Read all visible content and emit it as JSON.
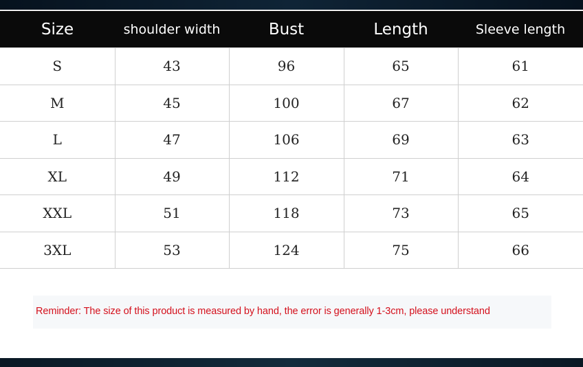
{
  "table": {
    "headers": [
      "Size",
      "shoulder width",
      "Bust",
      "Length",
      "Sleeve length"
    ],
    "rows": [
      [
        "S",
        "43",
        "96",
        "65",
        "61"
      ],
      [
        "M",
        "45",
        "100",
        "67",
        "62"
      ],
      [
        "L",
        "47",
        "106",
        "69",
        "63"
      ],
      [
        "XL",
        "49",
        "112",
        "71",
        "64"
      ],
      [
        "XXL",
        "51",
        "118",
        "73",
        "65"
      ],
      [
        "3XL",
        "53",
        "124",
        "75",
        "66"
      ]
    ]
  },
  "reminder": "Reminder: The size of this product is measured by hand, the error is generally 1-3cm, please understand",
  "colors": {
    "header_bg": "#0a0a0a",
    "reminder_text": "#d4101c",
    "background": "#0b1a28"
  }
}
